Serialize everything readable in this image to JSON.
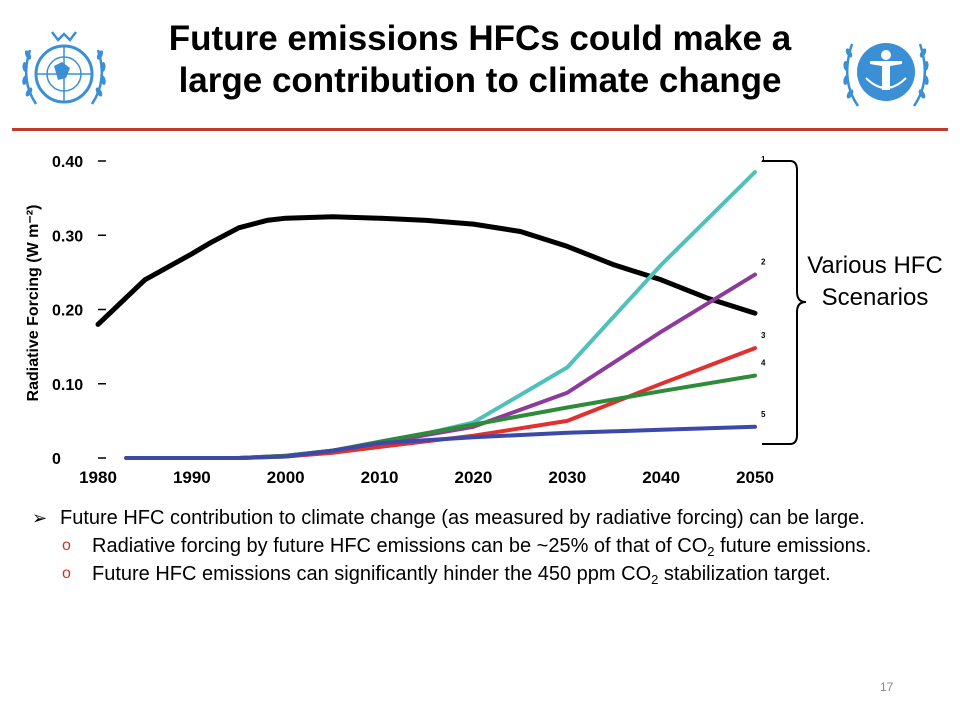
{
  "slide": {
    "title": "Future emissions HFCs could make a large contribution to climate change",
    "page_number": "17",
    "scenario_label": "Various HFC Scenarios"
  },
  "bullets": {
    "main": "Future HFC contribution to climate change (as measured by radiative forcing) can be large.",
    "sub1_before": "Radiative forcing by future HFC emissions can be ~25% of that of CO",
    "sub1_sub": "2",
    "sub1_after": " future emissions.",
    "sub2_before": "Future HFC emissions can significantly hinder the 450 ppm CO",
    "sub2_sub": "2",
    "sub2_after": " stabilization target."
  },
  "colors": {
    "accent_rule": "#c0392b",
    "logo_blue": "#3b8fd4"
  },
  "chart_data": {
    "type": "line",
    "ylabel": "Radiative Forcing (W m⁻²)",
    "xlim": [
      1980,
      2050
    ],
    "ylim": [
      0,
      0.4
    ],
    "x_ticks": [
      "1980",
      "1990",
      "2000",
      "2010",
      "2020",
      "2030",
      "2040",
      "2050"
    ],
    "y_ticks": [
      {
        "value": 0,
        "label": "0"
      },
      {
        "value": 0.1,
        "label": "0.10"
      },
      {
        "value": 0.2,
        "label": "0.20"
      },
      {
        "value": 0.3,
        "label": "0.30"
      },
      {
        "value": 0.4,
        "label": "0.40"
      }
    ],
    "grid": false,
    "series": [
      {
        "id": "co2",
        "color": "#000000",
        "x": [
          1980,
          1985,
          1990,
          1992,
          1995,
          1998,
          2000,
          2005,
          2010,
          2015,
          2020,
          2025,
          2030,
          2035,
          2040,
          2045,
          2050
        ],
        "y": [
          0.18,
          0.24,
          0.275,
          0.29,
          0.31,
          0.32,
          0.323,
          0.325,
          0.323,
          0.32,
          0.315,
          0.305,
          0.285,
          0.26,
          0.24,
          0.215,
          0.195
        ]
      },
      {
        "id": "scenario-1",
        "name": "1",
        "color": "#4fc1bb",
        "x": [
          1983,
          1995,
          2000,
          2005,
          2010,
          2020,
          2030,
          2040,
          2050
        ],
        "y": [
          0,
          0,
          0.002,
          0.008,
          0.018,
          0.048,
          0.122,
          0.26,
          0.385
        ]
      },
      {
        "id": "scenario-2",
        "name": "2",
        "color": "#8e3a9d",
        "x": [
          1983,
          1995,
          2000,
          2005,
          2010,
          2020,
          2030,
          2040,
          2050
        ],
        "y": [
          0,
          0,
          0.003,
          0.01,
          0.02,
          0.042,
          0.088,
          0.17,
          0.247
        ]
      },
      {
        "id": "scenario-3",
        "name": "3",
        "color": "#e03030",
        "x": [
          1983,
          1995,
          2000,
          2005,
          2010,
          2020,
          2030,
          2040,
          2050
        ],
        "y": [
          0,
          0,
          0.002,
          0.007,
          0.015,
          0.03,
          0.05,
          0.1,
          0.148
        ]
      },
      {
        "id": "scenario-4",
        "name": "4",
        "color": "#2e8b3a",
        "x": [
          1983,
          1995,
          2000,
          2005,
          2010,
          2020,
          2030,
          2040,
          2050
        ],
        "y": [
          0,
          0,
          0.003,
          0.01,
          0.022,
          0.045,
          0.068,
          0.09,
          0.111
        ]
      },
      {
        "id": "scenario-5",
        "name": "5",
        "color": "#3b4aa8",
        "x": [
          1983,
          1995,
          2000,
          2005,
          2010,
          2020,
          2030,
          2040,
          2050
        ],
        "y": [
          0,
          0,
          0.002,
          0.01,
          0.02,
          0.028,
          0.034,
          0.038,
          0.042
        ]
      }
    ]
  }
}
